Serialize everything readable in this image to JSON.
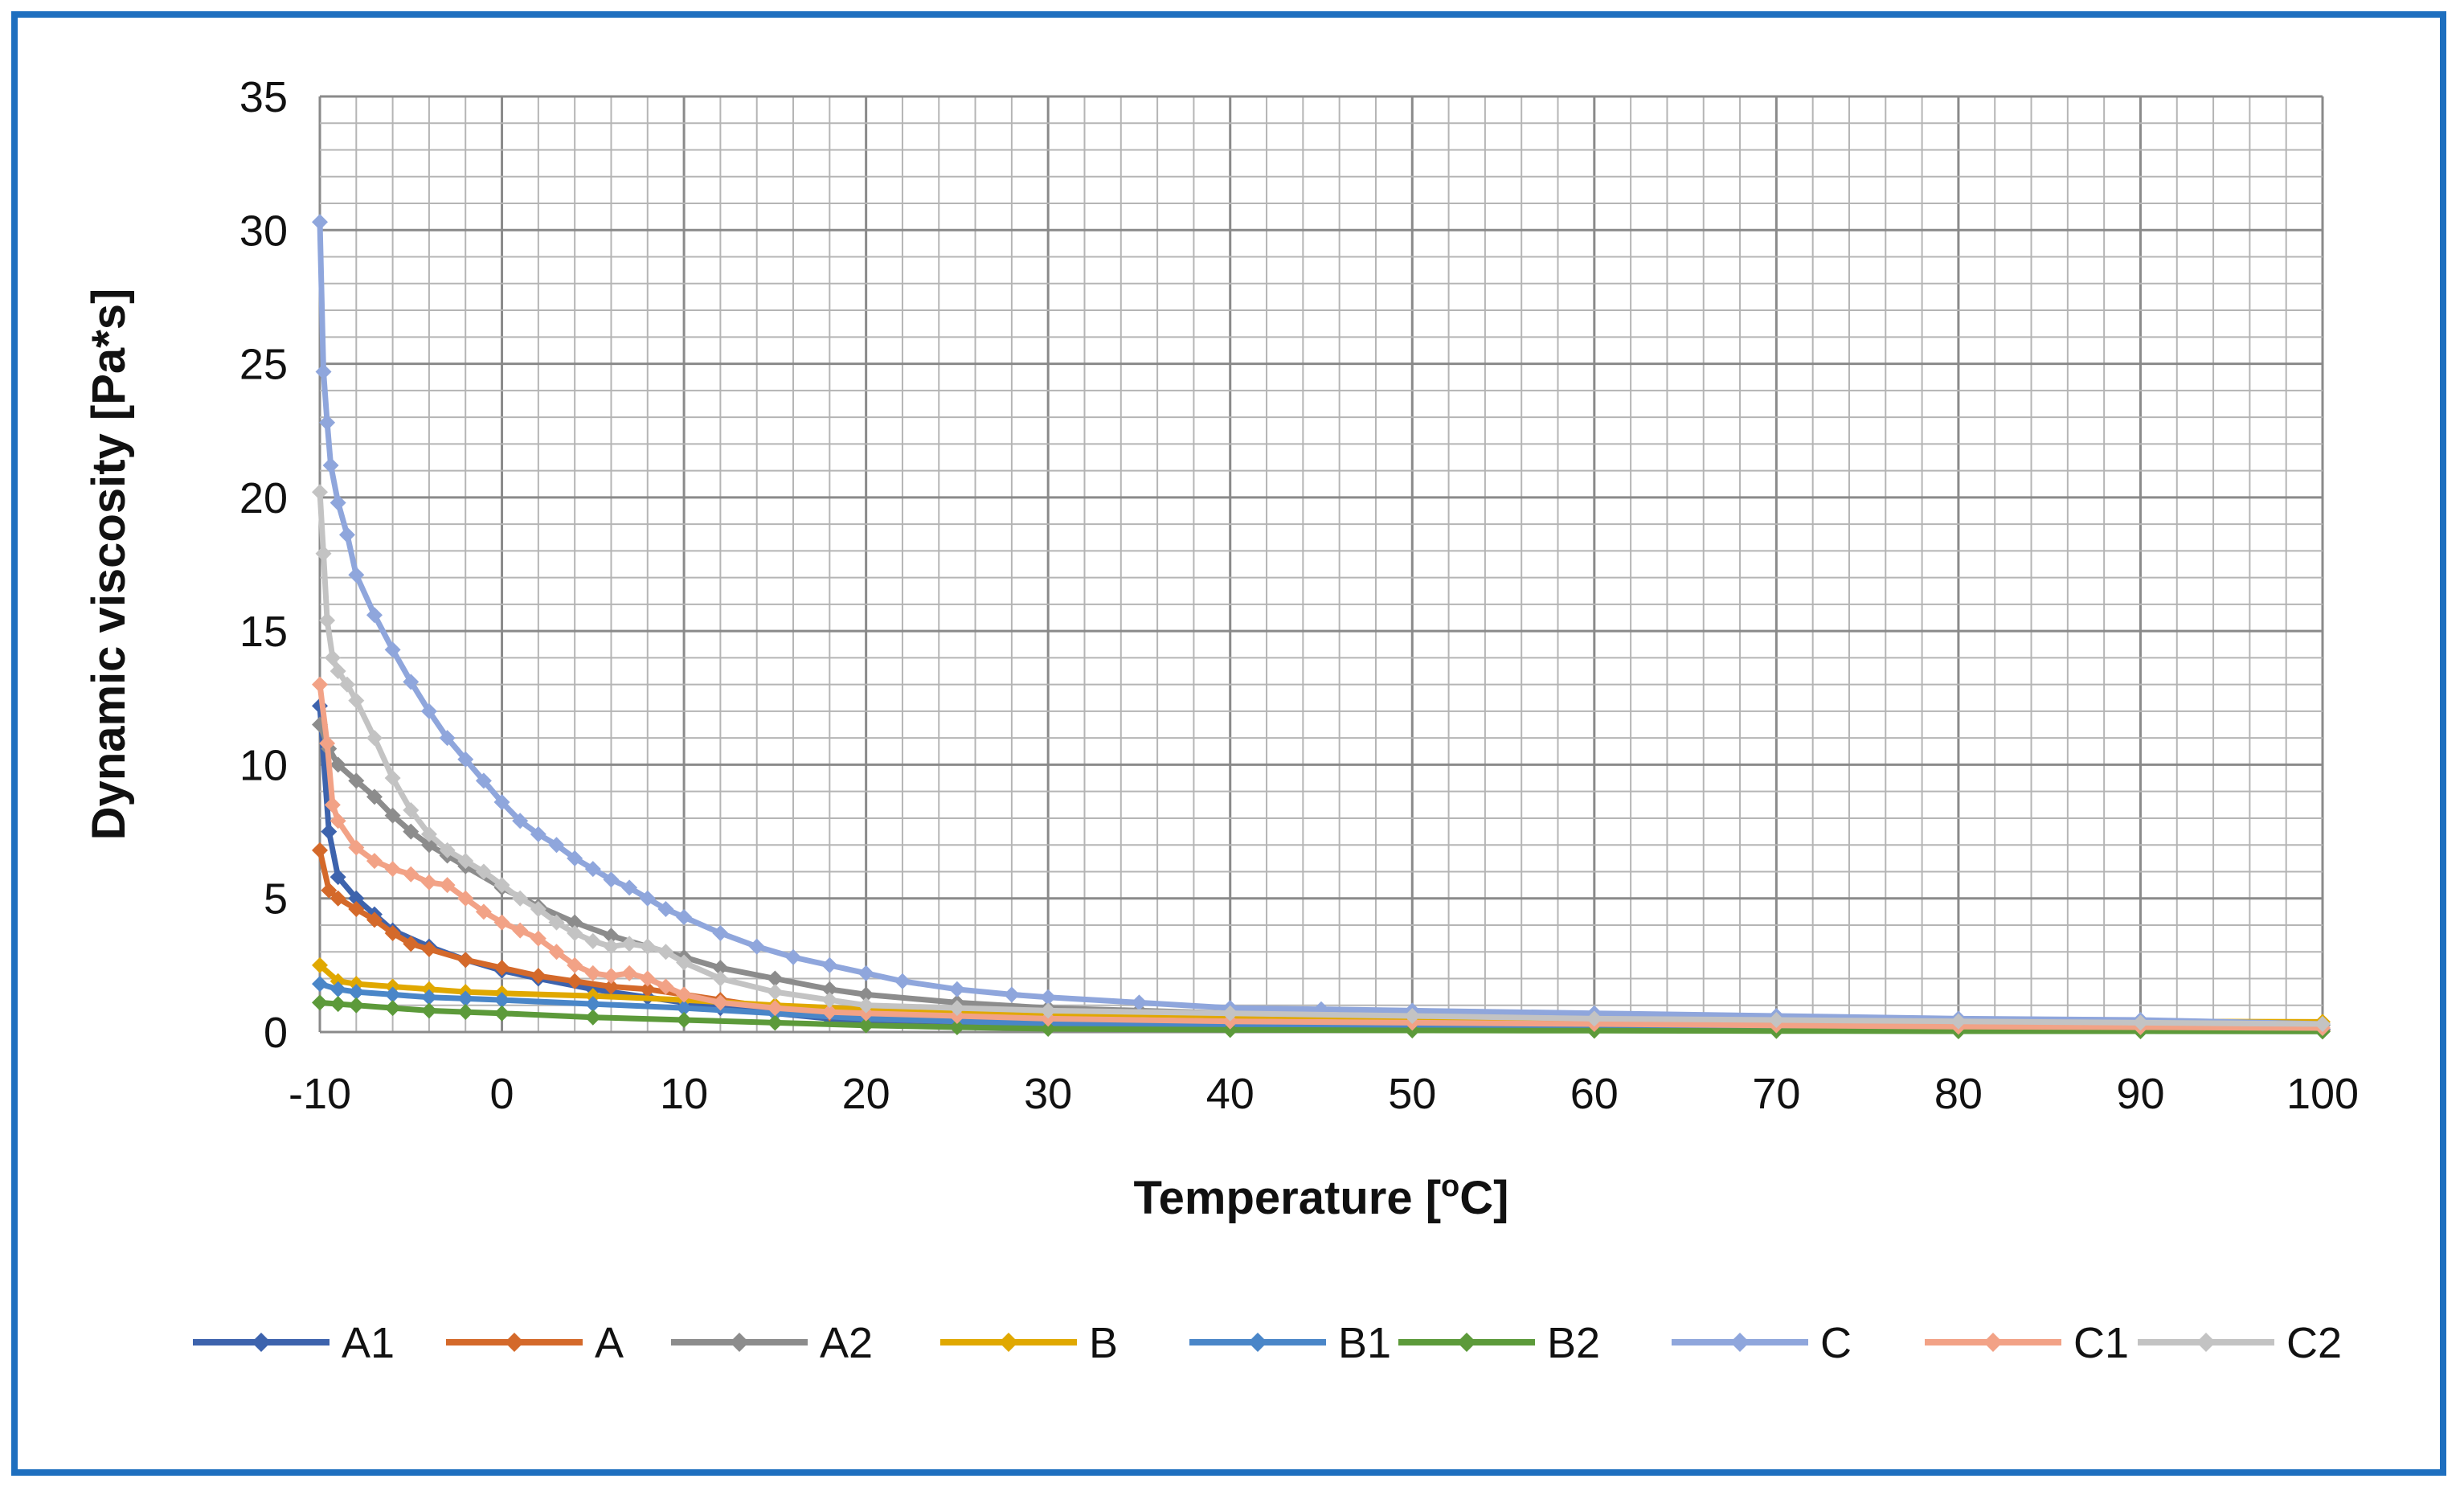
{
  "chart_data": {
    "type": "line",
    "title": "",
    "xlabel": "Temperature [°C]",
    "xlabel_main": "Temperature [",
    "xlabel_sup": "o",
    "xlabel_end": "C]",
    "ylabel": "Dynamic viscosity [Pa*s]",
    "xlim": [
      -10,
      100
    ],
    "ylim": [
      0,
      35
    ],
    "xticks": [
      -10,
      0,
      10,
      20,
      30,
      40,
      50,
      60,
      70,
      80,
      90,
      100
    ],
    "yticks": [
      0,
      5,
      10,
      15,
      20,
      25,
      30,
      35
    ],
    "xtick_labels": [
      "-10",
      "0",
      "10",
      "20",
      "30",
      "40",
      "50",
      "60",
      "70",
      "80",
      "90",
      "100"
    ],
    "ytick_labels": [
      "0",
      "5",
      "10",
      "15",
      "20",
      "25",
      "30",
      "35"
    ],
    "grid": true,
    "legend_position": "bottom",
    "series": [
      {
        "name": "A1",
        "color": "#3d63ad",
        "points": [
          [
            -10,
            12.2
          ],
          [
            -9.5,
            7.5
          ],
          [
            -9,
            5.8
          ],
          [
            -8,
            5.0
          ],
          [
            -7,
            4.4
          ],
          [
            -6,
            3.8
          ],
          [
            -4,
            3.2
          ],
          [
            -2,
            2.7
          ],
          [
            0,
            2.3
          ],
          [
            2,
            2.0
          ],
          [
            5,
            1.6
          ],
          [
            8,
            1.3
          ],
          [
            10,
            1.1
          ],
          [
            12,
            0.9
          ],
          [
            15,
            0.7
          ],
          [
            18,
            0.5
          ],
          [
            20,
            0.4
          ],
          [
            25,
            0.3
          ],
          [
            30,
            0.25
          ],
          [
            40,
            0.2
          ],
          [
            50,
            0.15
          ],
          [
            60,
            0.12
          ],
          [
            70,
            0.1
          ],
          [
            80,
            0.09
          ],
          [
            90,
            0.08
          ],
          [
            100,
            0.07
          ]
        ]
      },
      {
        "name": "A",
        "color": "#d4692a",
        "points": [
          [
            -10,
            6.8
          ],
          [
            -9.5,
            5.3
          ],
          [
            -9,
            5.0
          ],
          [
            -8,
            4.6
          ],
          [
            -7,
            4.2
          ],
          [
            -6,
            3.7
          ],
          [
            -5,
            3.3
          ],
          [
            -4,
            3.1
          ],
          [
            -2,
            2.7
          ],
          [
            0,
            2.4
          ],
          [
            2,
            2.1
          ],
          [
            4,
            1.9
          ],
          [
            6,
            1.7
          ],
          [
            8,
            1.6
          ],
          [
            10,
            1.4
          ],
          [
            12,
            1.2
          ],
          [
            15,
            0.9
          ],
          [
            18,
            0.7
          ],
          [
            20,
            0.5
          ],
          [
            25,
            0.4
          ],
          [
            30,
            0.3
          ],
          [
            40,
            0.25
          ],
          [
            50,
            0.2
          ],
          [
            60,
            0.15
          ],
          [
            70,
            0.12
          ],
          [
            80,
            0.1
          ],
          [
            90,
            0.08
          ],
          [
            100,
            0.07
          ]
        ]
      },
      {
        "name": "A2",
        "color": "#8c8c8c",
        "points": [
          [
            -10,
            11.5
          ],
          [
            -9.5,
            10.6
          ],
          [
            -9,
            10.0
          ],
          [
            -8,
            9.4
          ],
          [
            -7,
            8.8
          ],
          [
            -6,
            8.1
          ],
          [
            -5,
            7.5
          ],
          [
            -4,
            7.0
          ],
          [
            -3,
            6.6
          ],
          [
            -2,
            6.2
          ],
          [
            0,
            5.4
          ],
          [
            2,
            4.7
          ],
          [
            4,
            4.1
          ],
          [
            6,
            3.6
          ],
          [
            8,
            3.2
          ],
          [
            10,
            2.8
          ],
          [
            12,
            2.4
          ],
          [
            15,
            2.0
          ],
          [
            18,
            1.6
          ],
          [
            20,
            1.4
          ],
          [
            25,
            1.1
          ],
          [
            30,
            0.9
          ],
          [
            35,
            0.8
          ],
          [
            40,
            0.7
          ],
          [
            50,
            0.55
          ],
          [
            60,
            0.45
          ],
          [
            70,
            0.4
          ],
          [
            80,
            0.35
          ],
          [
            90,
            0.3
          ],
          [
            100,
            0.25
          ]
        ]
      },
      {
        "name": "B",
        "color": "#e0a800",
        "points": [
          [
            -10,
            2.5
          ],
          [
            -9,
            1.9
          ],
          [
            -8,
            1.8
          ],
          [
            -6,
            1.7
          ],
          [
            -4,
            1.6
          ],
          [
            -2,
            1.5
          ],
          [
            0,
            1.45
          ],
          [
            5,
            1.35
          ],
          [
            10,
            1.2
          ],
          [
            15,
            1.0
          ],
          [
            20,
            0.85
          ],
          [
            25,
            0.75
          ],
          [
            30,
            0.7
          ],
          [
            40,
            0.6
          ],
          [
            50,
            0.55
          ],
          [
            60,
            0.5
          ],
          [
            70,
            0.45
          ],
          [
            80,
            0.42
          ],
          [
            90,
            0.4
          ],
          [
            100,
            0.38
          ]
        ]
      },
      {
        "name": "B1",
        "color": "#4a86c8",
        "points": [
          [
            -10,
            1.8
          ],
          [
            -9,
            1.6
          ],
          [
            -8,
            1.5
          ],
          [
            -6,
            1.4
          ],
          [
            -4,
            1.3
          ],
          [
            -2,
            1.25
          ],
          [
            0,
            1.2
          ],
          [
            5,
            1.05
          ],
          [
            10,
            0.9
          ],
          [
            15,
            0.7
          ],
          [
            20,
            0.5
          ],
          [
            25,
            0.4
          ],
          [
            30,
            0.3
          ],
          [
            40,
            0.25
          ],
          [
            50,
            0.2
          ],
          [
            60,
            0.18
          ],
          [
            70,
            0.15
          ],
          [
            80,
            0.13
          ],
          [
            90,
            0.12
          ],
          [
            100,
            0.1
          ]
        ]
      },
      {
        "name": "B2",
        "color": "#5c9a3a",
        "points": [
          [
            -10,
            1.1
          ],
          [
            -9,
            1.05
          ],
          [
            -8,
            1.0
          ],
          [
            -6,
            0.9
          ],
          [
            -4,
            0.8
          ],
          [
            -2,
            0.75
          ],
          [
            0,
            0.7
          ],
          [
            5,
            0.55
          ],
          [
            10,
            0.45
          ],
          [
            15,
            0.35
          ],
          [
            20,
            0.25
          ],
          [
            25,
            0.18
          ],
          [
            30,
            0.12
          ],
          [
            40,
            0.08
          ],
          [
            50,
            0.06
          ],
          [
            60,
            0.05
          ],
          [
            70,
            0.04
          ],
          [
            80,
            0.03
          ],
          [
            90,
            0.03
          ],
          [
            100,
            0.02
          ]
        ]
      },
      {
        "name": "C",
        "color": "#8fa6dc",
        "points": [
          [
            -10,
            30.3
          ],
          [
            -9.8,
            24.7
          ],
          [
            -9.6,
            22.8
          ],
          [
            -9.4,
            21.2
          ],
          [
            -9,
            19.8
          ],
          [
            -8.5,
            18.6
          ],
          [
            -8,
            17.1
          ],
          [
            -7,
            15.6
          ],
          [
            -6,
            14.3
          ],
          [
            -5,
            13.1
          ],
          [
            -4,
            12.0
          ],
          [
            -3,
            11.0
          ],
          [
            -2,
            10.2
          ],
          [
            -1,
            9.4
          ],
          [
            0,
            8.6
          ],
          [
            1,
            7.9
          ],
          [
            2,
            7.4
          ],
          [
            3,
            7.0
          ],
          [
            4,
            6.5
          ],
          [
            5,
            6.1
          ],
          [
            6,
            5.7
          ],
          [
            7,
            5.4
          ],
          [
            8,
            5.0
          ],
          [
            9,
            4.6
          ],
          [
            10,
            4.3
          ],
          [
            12,
            3.7
          ],
          [
            14,
            3.2
          ],
          [
            16,
            2.8
          ],
          [
            18,
            2.5
          ],
          [
            20,
            2.2
          ],
          [
            22,
            1.9
          ],
          [
            25,
            1.6
          ],
          [
            28,
            1.4
          ],
          [
            30,
            1.3
          ],
          [
            35,
            1.1
          ],
          [
            40,
            0.9
          ],
          [
            45,
            0.85
          ],
          [
            50,
            0.8
          ],
          [
            60,
            0.7
          ],
          [
            70,
            0.6
          ],
          [
            80,
            0.5
          ],
          [
            90,
            0.45
          ],
          [
            100,
            0.3
          ]
        ]
      },
      {
        "name": "C1",
        "color": "#f2a286",
        "points": [
          [
            -10,
            13.0
          ],
          [
            -9.6,
            10.8
          ],
          [
            -9.3,
            8.5
          ],
          [
            -9,
            7.9
          ],
          [
            -8,
            6.9
          ],
          [
            -7,
            6.4
          ],
          [
            -6,
            6.1
          ],
          [
            -5,
            5.9
          ],
          [
            -4,
            5.6
          ],
          [
            -3,
            5.5
          ],
          [
            -2,
            5.0
          ],
          [
            -1,
            4.5
          ],
          [
            0,
            4.1
          ],
          [
            1,
            3.8
          ],
          [
            2,
            3.5
          ],
          [
            3,
            3.0
          ],
          [
            4,
            2.5
          ],
          [
            5,
            2.2
          ],
          [
            6,
            2.1
          ],
          [
            7,
            2.2
          ],
          [
            8,
            2.0
          ],
          [
            9,
            1.7
          ],
          [
            10,
            1.4
          ],
          [
            12,
            1.1
          ],
          [
            15,
            0.9
          ],
          [
            18,
            0.75
          ],
          [
            20,
            0.7
          ],
          [
            25,
            0.6
          ],
          [
            30,
            0.5
          ],
          [
            40,
            0.4
          ],
          [
            50,
            0.35
          ],
          [
            60,
            0.3
          ],
          [
            70,
            0.25
          ],
          [
            80,
            0.2
          ],
          [
            90,
            0.18
          ],
          [
            100,
            0.15
          ]
        ]
      },
      {
        "name": "C2",
        "color": "#c3c3c3",
        "points": [
          [
            -10,
            20.2
          ],
          [
            -9.8,
            17.9
          ],
          [
            -9.6,
            15.4
          ],
          [
            -9.3,
            14.0
          ],
          [
            -9,
            13.5
          ],
          [
            -8.5,
            13.0
          ],
          [
            -8,
            12.4
          ],
          [
            -7,
            11.0
          ],
          [
            -6,
            9.5
          ],
          [
            -5,
            8.3
          ],
          [
            -4,
            7.4
          ],
          [
            -3,
            6.8
          ],
          [
            -2,
            6.4
          ],
          [
            -1,
            6.0
          ],
          [
            0,
            5.5
          ],
          [
            1,
            5.0
          ],
          [
            2,
            4.6
          ],
          [
            3,
            4.1
          ],
          [
            4,
            3.7
          ],
          [
            5,
            3.4
          ],
          [
            6,
            3.2
          ],
          [
            7,
            3.3
          ],
          [
            8,
            3.2
          ],
          [
            9,
            3.0
          ],
          [
            10,
            2.6
          ],
          [
            12,
            2.0
          ],
          [
            15,
            1.5
          ],
          [
            18,
            1.2
          ],
          [
            20,
            1.0
          ],
          [
            25,
            0.9
          ],
          [
            30,
            0.8
          ],
          [
            40,
            0.7
          ],
          [
            50,
            0.6
          ],
          [
            60,
            0.5
          ],
          [
            70,
            0.45
          ],
          [
            80,
            0.4
          ],
          [
            90,
            0.35
          ],
          [
            100,
            0.3
          ]
        ]
      }
    ]
  }
}
